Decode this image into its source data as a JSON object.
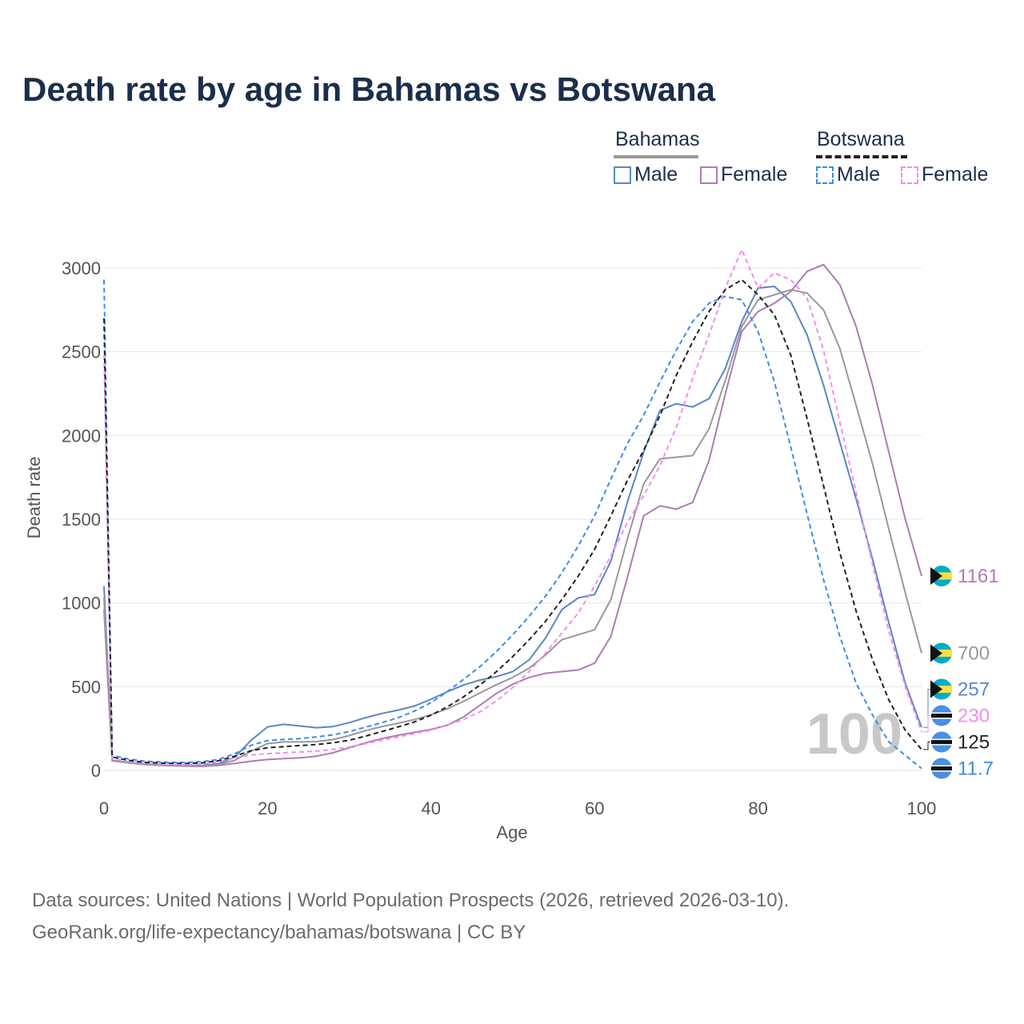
{
  "title": "Death rate by age in Bahamas vs Botswana",
  "legend": {
    "groups": [
      {
        "label": "Bahamas",
        "line_style": "solid",
        "line_color": "#999999",
        "items": [
          {
            "label": "Male",
            "color": "#5b87c5",
            "dashed": false
          },
          {
            "label": "Female",
            "color": "#b07ab8",
            "dashed": false
          }
        ]
      },
      {
        "label": "Botswana",
        "line_style": "dashed",
        "line_color": "#222222",
        "items": [
          {
            "label": "Male",
            "color": "#3b8de6",
            "dashed": true
          },
          {
            "label": "Female",
            "color": "#f58cf0",
            "dashed": true
          }
        ]
      }
    ]
  },
  "footer": {
    "line1": "Data sources: United Nations | World Population Prospects (2026, retrieved 2026-03-10).",
    "line2": "GeoRank.org/life-expectancy/bahamas/botswana | CC BY"
  },
  "chart_data": {
    "type": "line",
    "title": "Death rate by age in Bahamas vs Botswana",
    "xlabel": "Age",
    "ylabel": "Death rate",
    "xlim": [
      0,
      100
    ],
    "ylim": [
      0,
      3000
    ],
    "xticks": [
      0,
      20,
      40,
      60,
      80,
      100
    ],
    "yticks": [
      0,
      500,
      1000,
      1500,
      2000,
      2500,
      3000
    ],
    "grid": true,
    "watermark": "100",
    "x": [
      0,
      1,
      3,
      5,
      8,
      10,
      12,
      14,
      16,
      18,
      20,
      22,
      24,
      26,
      28,
      30,
      32,
      34,
      36,
      38,
      40,
      42,
      44,
      46,
      48,
      50,
      52,
      54,
      56,
      58,
      60,
      62,
      64,
      66,
      68,
      70,
      72,
      74,
      76,
      78,
      80,
      82,
      84,
      86,
      88,
      90,
      92,
      94,
      96,
      98,
      100
    ],
    "series": [
      {
        "name": "Bahamas Male",
        "country": "Bahamas",
        "sex": "Male",
        "color": "#5b87c5",
        "dashed": false,
        "end_label": "257",
        "values": [
          1100,
          60,
          48,
          38,
          30,
          28,
          30,
          40,
          80,
          180,
          260,
          275,
          265,
          255,
          262,
          285,
          315,
          340,
          360,
          385,
          425,
          470,
          510,
          540,
          560,
          590,
          660,
          790,
          960,
          1030,
          1050,
          1250,
          1600,
          1900,
          2150,
          2190,
          2170,
          2220,
          2400,
          2680,
          2880,
          2890,
          2800,
          2600,
          2300,
          1960,
          1620,
          1260,
          880,
          520,
          257
        ]
      },
      {
        "name": "Bahamas Female",
        "country": "Bahamas",
        "sex": "Female",
        "color": "#b07ab8",
        "dashed": false,
        "end_label": "1161",
        "values": [
          960,
          58,
          45,
          35,
          28,
          25,
          24,
          30,
          42,
          55,
          65,
          70,
          75,
          85,
          105,
          135,
          165,
          190,
          210,
          228,
          245,
          270,
          320,
          390,
          460,
          515,
          555,
          580,
          590,
          600,
          640,
          800,
          1150,
          1520,
          1580,
          1560,
          1600,
          1850,
          2250,
          2620,
          2740,
          2790,
          2860,
          2980,
          3020,
          2900,
          2650,
          2300,
          1900,
          1500,
          1161
        ]
      },
      {
        "name": "Bahamas (both sexes)",
        "country": "Bahamas",
        "sex": "Both",
        "color": "#999999",
        "dashed": false,
        "end_label": "700",
        "values": [
          1030,
          60,
          47,
          36,
          29,
          27,
          27,
          35,
          60,
          115,
          160,
          170,
          170,
          172,
          184,
          208,
          238,
          262,
          282,
          304,
          333,
          368,
          413,
          463,
          512,
          555,
          610,
          690,
          780,
          810,
          840,
          1020,
          1380,
          1710,
          1860,
          1870,
          1880,
          2040,
          2330,
          2650,
          2810,
          2840,
          2870,
          2850,
          2750,
          2520,
          2180,
          1830,
          1440,
          1060,
          700
        ]
      },
      {
        "name": "Botswana Male",
        "country": "Botswana",
        "sex": "Male",
        "color": "#3b8de6",
        "dashed": true,
        "end_label": "11.7",
        "values": [
          2930,
          90,
          68,
          55,
          48,
          48,
          52,
          65,
          100,
          150,
          178,
          185,
          190,
          200,
          212,
          232,
          258,
          285,
          315,
          355,
          405,
          470,
          545,
          620,
          710,
          810,
          920,
          1040,
          1180,
          1340,
          1520,
          1740,
          1950,
          2120,
          2320,
          2510,
          2680,
          2790,
          2830,
          2810,
          2620,
          2320,
          1930,
          1530,
          1140,
          800,
          520,
          330,
          170,
          90,
          11.7
        ]
      },
      {
        "name": "Botswana Female",
        "country": "Botswana",
        "sex": "Female",
        "color": "#f58cf0",
        "dashed": true,
        "end_label": "230",
        "values": [
          2480,
          70,
          52,
          42,
          36,
          34,
          38,
          52,
          75,
          92,
          100,
          105,
          110,
          115,
          125,
          140,
          160,
          180,
          200,
          220,
          240,
          270,
          305,
          350,
          415,
          495,
          590,
          700,
          820,
          940,
          1100,
          1280,
          1480,
          1640,
          1820,
          2050,
          2340,
          2600,
          2880,
          3110,
          2880,
          2970,
          2930,
          2820,
          2510,
          2080,
          1660,
          1230,
          830,
          500,
          230
        ]
      },
      {
        "name": "Botswana (both sexes)",
        "country": "Botswana",
        "sex": "Both",
        "color": "#222222",
        "dashed": true,
        "end_label": "125",
        "values": [
          2700,
          80,
          60,
          48,
          42,
          41,
          45,
          58,
          85,
          118,
          135,
          142,
          148,
          155,
          165,
          180,
          205,
          232,
          260,
          290,
          330,
          380,
          440,
          510,
          590,
          680,
          780,
          890,
          1020,
          1160,
          1320,
          1520,
          1730,
          1910,
          2120,
          2360,
          2560,
          2740,
          2870,
          2930,
          2840,
          2720,
          2480,
          2100,
          1700,
          1300,
          950,
          660,
          420,
          240,
          125
        ]
      }
    ]
  }
}
